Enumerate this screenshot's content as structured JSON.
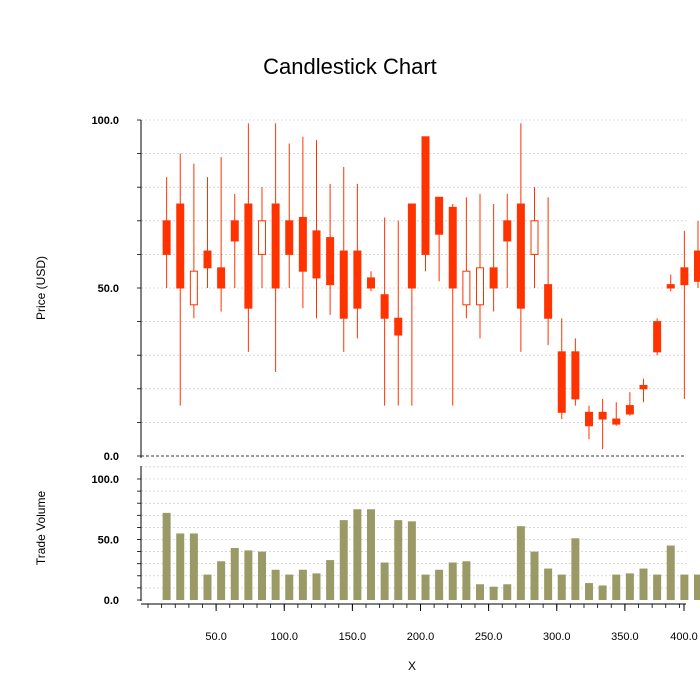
{
  "chart_data": {
    "type": "candlestick",
    "title": "Candlestick Chart",
    "xlabel": "X",
    "xlim": [
      0,
      400
    ],
    "x_ticks": [
      "50.0",
      "100.0",
      "150.0",
      "200.0",
      "250.0",
      "300.0",
      "350.0",
      "400.0"
    ],
    "x_tick_values": [
      50,
      100,
      150,
      200,
      250,
      300,
      350,
      400
    ],
    "grid": true,
    "colors": {
      "up": "#ff3300",
      "down": "#ff3300",
      "volume": "#9a9a66",
      "grid": "#c0c0c0"
    },
    "price": {
      "ylabel": "Price (USD)",
      "ylim": [
        0,
        100
      ],
      "y_ticks": [
        "0.0",
        "50.0",
        "100.0"
      ],
      "y_tick_values": [
        0,
        50,
        100
      ],
      "ohlc": [
        {
          "x": 10,
          "open": 70,
          "high": 83,
          "low": 50,
          "close": 60
        },
        {
          "x": 20,
          "open": 75,
          "high": 90,
          "low": 15,
          "close": 50
        },
        {
          "x": 30,
          "open": 45,
          "high": 87,
          "low": 41,
          "close": 55
        },
        {
          "x": 40,
          "open": 61,
          "high": 83,
          "low": 50,
          "close": 56
        },
        {
          "x": 50,
          "open": 56,
          "high": 89,
          "low": 43,
          "close": 50
        },
        {
          "x": 60,
          "open": 70,
          "high": 78,
          "low": 50,
          "close": 64
        },
        {
          "x": 70,
          "open": 75,
          "high": 99,
          "low": 31,
          "close": 44
        },
        {
          "x": 80,
          "open": 60,
          "high": 80,
          "low": 50,
          "close": 70
        },
        {
          "x": 90,
          "open": 75,
          "high": 99,
          "low": 25,
          "close": 50
        },
        {
          "x": 100,
          "open": 70,
          "high": 93,
          "low": 50,
          "close": 60
        },
        {
          "x": 110,
          "open": 71,
          "high": 95,
          "low": 44,
          "close": 55
        },
        {
          "x": 120,
          "open": 67,
          "high": 94,
          "low": 41,
          "close": 53
        },
        {
          "x": 130,
          "open": 65,
          "high": 81,
          "low": 42,
          "close": 51
        },
        {
          "x": 140,
          "open": 61,
          "high": 86,
          "low": 31,
          "close": 41
        },
        {
          "x": 150,
          "open": 61,
          "high": 81,
          "low": 35,
          "close": 44
        },
        {
          "x": 160,
          "open": 53,
          "high": 55,
          "low": 49,
          "close": 50
        },
        {
          "x": 170,
          "open": 48,
          "high": 71,
          "low": 15,
          "close": 41
        },
        {
          "x": 180,
          "open": 41,
          "high": 70,
          "low": 15,
          "close": 36
        },
        {
          "x": 190,
          "open": 75,
          "high": 75,
          "low": 15,
          "close": 50
        },
        {
          "x": 200,
          "open": 95,
          "high": 95,
          "low": 55,
          "close": 60
        },
        {
          "x": 210,
          "open": 77,
          "high": 77,
          "low": 52,
          "close": 66
        },
        {
          "x": 220,
          "open": 74,
          "high": 75,
          "low": 15,
          "close": 50
        },
        {
          "x": 230,
          "open": 45,
          "high": 77,
          "low": 41,
          "close": 55
        },
        {
          "x": 240,
          "open": 45,
          "high": 78,
          "low": 35,
          "close": 56
        },
        {
          "x": 250,
          "open": 56,
          "high": 75,
          "low": 43,
          "close": 50
        },
        {
          "x": 260,
          "open": 70,
          "high": 78,
          "low": 50,
          "close": 64
        },
        {
          "x": 270,
          "open": 75,
          "high": 99,
          "low": 31,
          "close": 44
        },
        {
          "x": 280,
          "open": 60,
          "high": 80,
          "low": 50,
          "close": 70
        },
        {
          "x": 290,
          "open": 51,
          "high": 77,
          "low": 33,
          "close": 41
        },
        {
          "x": 300,
          "open": 31,
          "high": 41,
          "low": 11,
          "close": 13
        },
        {
          "x": 310,
          "open": 31,
          "high": 35,
          "low": 15,
          "close": 17
        },
        {
          "x": 320,
          "open": 13,
          "high": 15,
          "low": 5,
          "close": 9
        },
        {
          "x": 330,
          "open": 13,
          "high": 17,
          "low": 2,
          "close": 11
        },
        {
          "x": 340,
          "open": 11,
          "high": 16,
          "low": 9,
          "close": 9.5
        },
        {
          "x": 350,
          "open": 15,
          "high": 19,
          "low": 12,
          "close": 12.5
        },
        {
          "x": 360,
          "open": 21,
          "high": 23,
          "low": 16,
          "close": 20
        },
        {
          "x": 370,
          "open": 40,
          "high": 41,
          "low": 30,
          "close": 31
        },
        {
          "x": 380,
          "open": 51,
          "high": 54,
          "low": 49,
          "close": 50
        },
        {
          "x": 390,
          "open": 56,
          "high": 67,
          "low": 17,
          "close": 51
        },
        {
          "x": 400,
          "open": 61,
          "high": 70,
          "low": 50,
          "close": 52
        }
      ]
    },
    "volume": {
      "ylabel": "Trade Volume",
      "ylim": [
        0,
        100
      ],
      "y_ticks": [
        "0.0",
        "50.0",
        "100.0"
      ],
      "y_tick_values": [
        0,
        50,
        100
      ],
      "values": [
        72,
        55,
        55,
        21,
        32,
        43,
        41,
        40,
        25,
        21,
        25,
        22,
        33,
        66,
        75,
        75,
        31,
        66,
        65,
        21,
        25,
        31,
        32,
        13,
        11,
        13,
        61,
        40,
        26,
        21,
        51,
        14,
        12,
        21,
        22,
        26,
        21,
        45,
        21,
        21
      ]
    }
  }
}
